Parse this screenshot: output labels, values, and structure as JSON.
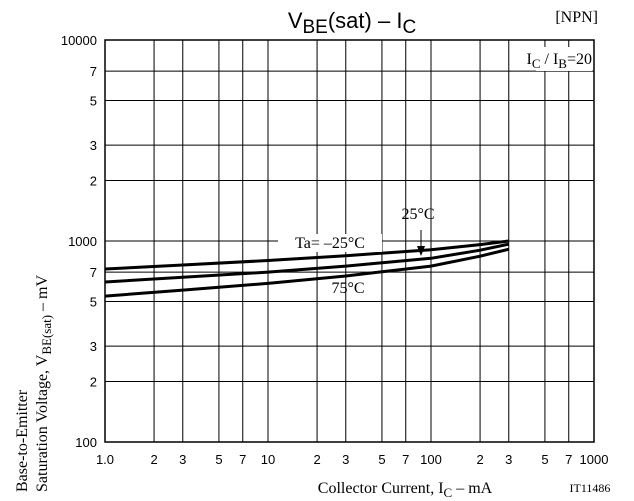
{
  "chart_data": {
    "type": "line",
    "title": [
      "V",
      "BE",
      "(sat)  –  I",
      "C"
    ],
    "corner_note": "[NPN]",
    "condition": [
      "I",
      "C",
      " / I",
      "B",
      "=20"
    ],
    "y_label": {
      "line1": "Base-to-Emitter",
      "line2": [
        "Saturation Voltage, V",
        "BE(sat)",
        "  –  mV"
      ]
    },
    "x_label": [
      "Collector Current, I",
      "C",
      "  –  mA"
    ],
    "figure_id": "IT11486",
    "xscale": "log",
    "yscale": "log",
    "grid": true,
    "xlim": [
      1,
      1000
    ],
    "xticks": [
      {
        "value": 1,
        "label": "1.0"
      },
      2,
      3,
      5,
      7,
      10,
      {
        "value": 20,
        "label": "2"
      },
      {
        "value": 30,
        "label": "3"
      },
      {
        "value": 50,
        "label": "5"
      },
      {
        "value": 70,
        "label": "7"
      },
      100,
      {
        "value": 200,
        "label": "2"
      },
      {
        "value": 300,
        "label": "3"
      },
      {
        "value": 500,
        "label": "5"
      },
      {
        "value": 700,
        "label": "7"
      },
      1000
    ],
    "ylim": [
      100,
      10000
    ],
    "yticks": [
      100,
      {
        "value": 200,
        "label": "2"
      },
      {
        "value": 300,
        "label": "3"
      },
      {
        "value": 500,
        "label": "5"
      },
      {
        "value": 700,
        "label": "7"
      },
      1000,
      {
        "value": 2000,
        "label": "2"
      },
      {
        "value": 3000,
        "label": "3"
      },
      {
        "value": 5000,
        "label": "5"
      },
      {
        "value": 7000,
        "label": "7"
      },
      10000
    ],
    "x": [
      1,
      3,
      10,
      30,
      100,
      200,
      300
    ],
    "series": [
      {
        "name": "Ta= –25°C",
        "color": "#000000",
        "values": [
          726,
          760,
          800,
          845,
          905,
          960,
          1000
        ]
      },
      {
        "name": "25°C",
        "color": "#000000",
        "values": [
          625,
          660,
          700,
          750,
          820,
          900,
          965
        ]
      },
      {
        "name": "75°C",
        "color": "#000000",
        "values": [
          532,
          570,
          615,
          670,
          750,
          840,
          910
        ]
      }
    ]
  }
}
